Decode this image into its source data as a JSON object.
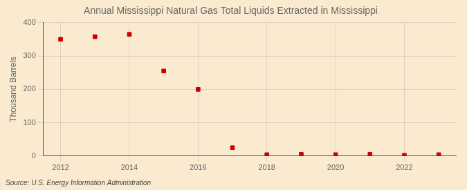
{
  "chart_data": {
    "type": "scatter",
    "title": "Annual Mississippi Natural Gas Total Liquids Extracted in Mississippi",
    "ylabel": "Thousand Barrels",
    "annotation": "Source: U.S. Energy Information Administration",
    "x": [
      2012,
      2013,
      2014,
      2015,
      2016,
      2017,
      2018,
      2019,
      2020,
      2021,
      2022,
      2023
    ],
    "values": [
      350,
      358,
      365,
      255,
      200,
      25,
      4,
      5,
      4,
      5,
      2,
      4
    ],
    "color": "#cc0000",
    "marker": "square",
    "xlim": [
      2011.5,
      2023.5
    ],
    "xticks": [
      2012,
      2014,
      2016,
      2018,
      2020,
      2022
    ],
    "ylim": [
      0,
      400
    ],
    "yticks": [
      0,
      100,
      200,
      300,
      400
    ],
    "grid": true
  }
}
